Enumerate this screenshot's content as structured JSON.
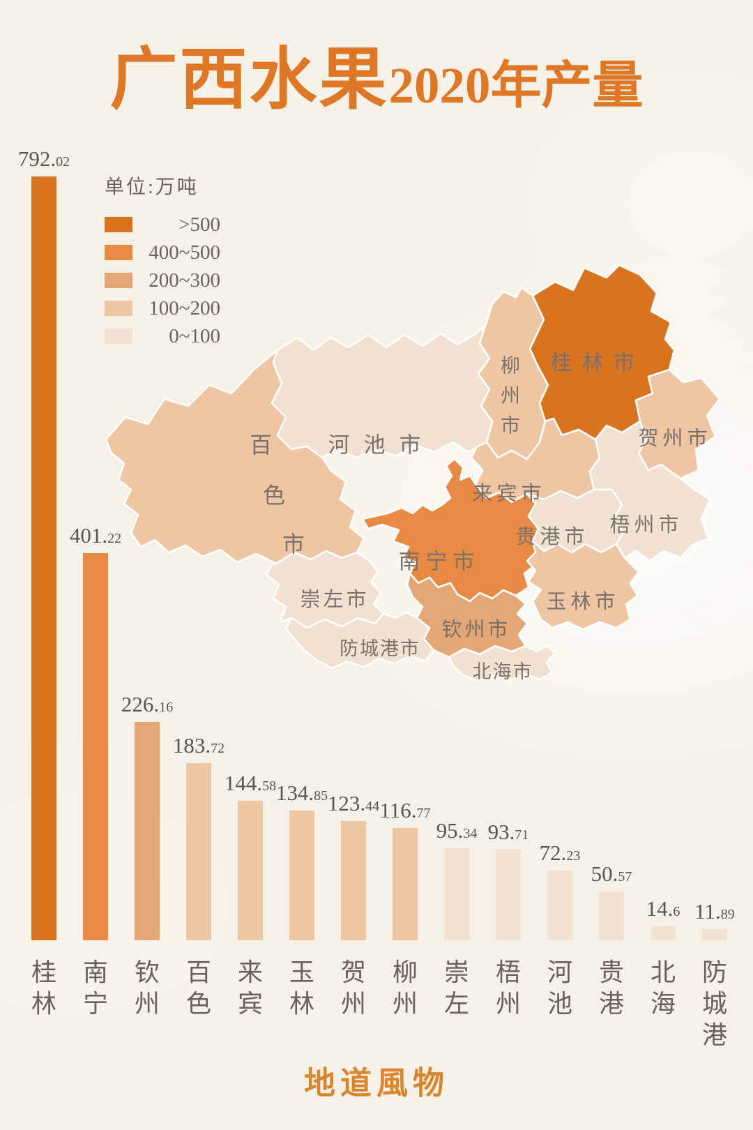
{
  "title": {
    "main": "广西水果",
    "suffix": "2020年产量"
  },
  "legend": {
    "unit_label": "单位:万吨",
    "classes": [
      {
        "label": ">500",
        "color": "#D8731F"
      },
      {
        "label": "400~500",
        "color": "#E78B44"
      },
      {
        "label": "200~300",
        "color": "#E4A674"
      },
      {
        "label": "100~200",
        "color": "#EEC6A4"
      },
      {
        "label": "0~100",
        "color": "#F1E1D1"
      }
    ]
  },
  "chart_data": {
    "type": "bar",
    "title": "广西水果2020年产量",
    "unit": "万吨",
    "categories": [
      "桂林",
      "南宁",
      "钦州",
      "百色",
      "来宾",
      "玉林",
      "贺州",
      "柳州",
      "崇左",
      "梧州",
      "河池",
      "贵港",
      "北海",
      "防城港"
    ],
    "values": [
      792.02,
      401.22,
      226.16,
      183.72,
      144.58,
      134.85,
      123.44,
      116.77,
      95.34,
      93.71,
      72.23,
      50.57,
      14.6,
      11.89
    ],
    "value_labels": [
      "792.02",
      "401.22",
      "226.16",
      "183.72",
      "144.58",
      "134.85",
      "123.44",
      "116.77",
      "95.34",
      "93.71",
      "72.23",
      "50.57",
      "14.6",
      "11.89"
    ],
    "class_index": [
      0,
      1,
      2,
      3,
      3,
      3,
      3,
      3,
      4,
      4,
      4,
      4,
      4,
      4
    ],
    "xlabel": "",
    "ylabel": "单位:万吨",
    "ylim": [
      0,
      800
    ],
    "grid": false,
    "legend_position": "upper-left",
    "legend_bins": [
      ">500",
      "400~500",
      "200~300",
      "100~200",
      "0~100"
    ]
  },
  "map": {
    "regions": [
      {
        "id": "baise",
        "label": "百色市",
        "class_index": 3
      },
      {
        "id": "hechi",
        "label": "河池市",
        "class_index": 4
      },
      {
        "id": "liuzhou",
        "label": "柳州市",
        "class_index": 3
      },
      {
        "id": "guilin",
        "label": "桂林市",
        "class_index": 0
      },
      {
        "id": "hezhou",
        "label": "贺州市",
        "class_index": 3
      },
      {
        "id": "laibin",
        "label": "来宾市",
        "class_index": 3
      },
      {
        "id": "wuzhou",
        "label": "梧州市",
        "class_index": 4
      },
      {
        "id": "guigang",
        "label": "贵港市",
        "class_index": 4
      },
      {
        "id": "nanning",
        "label": "南宁市",
        "class_index": 1
      },
      {
        "id": "chongzuo",
        "label": "崇左市",
        "class_index": 4
      },
      {
        "id": "yulin",
        "label": "玉林市",
        "class_index": 3
      },
      {
        "id": "qinzhou",
        "label": "钦州市",
        "class_index": 2
      },
      {
        "id": "fangchenggang",
        "label": "防城港市",
        "class_index": 4
      },
      {
        "id": "beihai",
        "label": "北海市",
        "class_index": 4
      }
    ]
  },
  "footer": {
    "brand": "地道風物"
  }
}
